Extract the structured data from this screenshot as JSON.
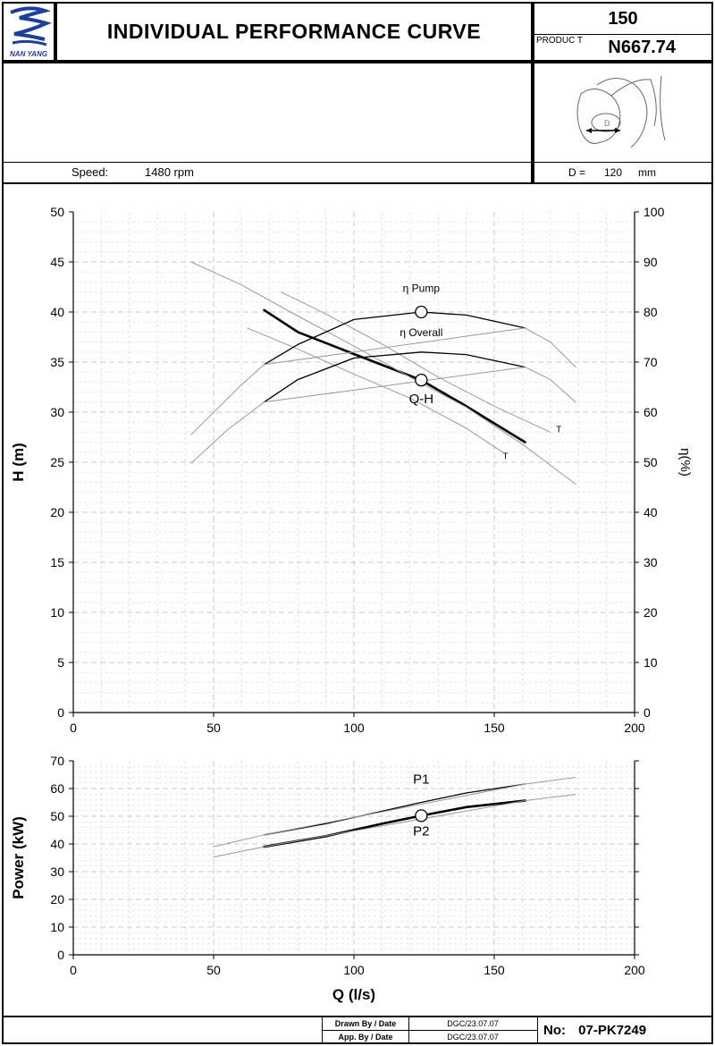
{
  "header": {
    "logo_text": "NAN YANG",
    "title": "INDIVIDUAL PERFORMANCE  CURVE",
    "size": "150",
    "product_label": "PRODUC  T",
    "product_value": "N667.74"
  },
  "specs": {
    "speed_label": "Speed:",
    "speed_value": "1480 rpm",
    "diameter_label": "D =",
    "diameter_value": "120",
    "diameter_unit": "mm",
    "impeller_mark": "D"
  },
  "footer": {
    "drawn_label": "Drawn By / Date",
    "drawn_value": "DGC/23.07.07",
    "approved_label": "App. By / Date",
    "approved_value": "DGC/23.07.07",
    "no_label": "No:",
    "no_value": "07-PK7249"
  },
  "chart_data": [
    {
      "type": "line",
      "xlabel": "",
      "ylabel": "H (m)",
      "y2label": "η(%)",
      "xlim": [
        0,
        200
      ],
      "ylim": [
        0,
        50
      ],
      "y2lim": [
        0,
        100
      ],
      "x_ticks": [
        "0",
        "50",
        "100",
        "150",
        "200"
      ],
      "y_ticks": [
        "0",
        "5",
        "10",
        "15",
        "20",
        "25",
        "30",
        "35",
        "40",
        "45",
        "50"
      ],
      "y2_ticks": [
        "0",
        "10",
        "20",
        "30",
        "40",
        "50",
        "60",
        "70",
        "80",
        "90",
        "100"
      ],
      "grid": true,
      "series": [
        {
          "name": "Q-H",
          "axis": "left",
          "style": "bold",
          "x": [
            68,
            80,
            100,
            124,
            140,
            161
          ],
          "y": [
            40.2,
            38.0,
            35.8,
            33.2,
            30.6,
            27.0
          ]
        },
        {
          "name": "",
          "axis": "left",
          "style": "thin",
          "x": [
            42,
            60,
            80,
            100,
            120,
            140,
            160,
            179
          ],
          "y": [
            45.0,
            42.7,
            39.6,
            36.6,
            33.5,
            30.5,
            26.8,
            22.8
          ]
        },
        {
          "name": "",
          "axis": "left",
          "style": "thin",
          "x": [
            74,
            90,
            110,
            130,
            150,
            170
          ],
          "y": [
            42.0,
            39.8,
            36.8,
            33.5,
            30.6,
            28.0
          ]
        },
        {
          "name": "",
          "axis": "left",
          "style": "thin",
          "x": [
            62,
            80,
            100,
            120,
            140,
            153
          ],
          "y": [
            38.4,
            36.3,
            33.8,
            31.4,
            28.4,
            26.0
          ]
        },
        {
          "name": "η Pump",
          "axis": "right",
          "style": "medium",
          "x": [
            68,
            80,
            100,
            124,
            140,
            161
          ],
          "y": [
            69.5,
            73.5,
            78.5,
            80.0,
            79.4,
            76.8
          ]
        },
        {
          "name": "",
          "axis": "right",
          "style": "thin",
          "x": [
            42,
            60,
            68,
            161,
            170,
            179
          ],
          "y": [
            55.5,
            65.5,
            69.5,
            76.8,
            74.0,
            69.0
          ]
        },
        {
          "name": "η Overall",
          "axis": "right",
          "style": "medium",
          "x": [
            68,
            80,
            100,
            124,
            140,
            161
          ],
          "y": [
            62.0,
            66.5,
            70.8,
            72.0,
            71.5,
            69.0
          ]
        },
        {
          "name": "",
          "axis": "right",
          "style": "thin",
          "x": [
            42,
            55,
            68,
            161,
            170,
            179
          ],
          "y": [
            49.8,
            56.5,
            62.0,
            69.0,
            66.5,
            62.0
          ]
        }
      ],
      "annotations": [
        {
          "text": "Q-H",
          "x": 124,
          "y": 30.9
        },
        {
          "text": "η Pump",
          "x": 124,
          "y": 42.0
        },
        {
          "text": "η Overall",
          "x": 124,
          "y": 37.6
        },
        {
          "text": "T",
          "x": 172,
          "y": 28.0
        },
        {
          "text": "T",
          "x": 153,
          "y": 25.3
        }
      ],
      "markers": [
        {
          "x": 124,
          "y": 33.2,
          "axis": "left"
        },
        {
          "x": 124,
          "y": 80.0,
          "axis": "right"
        }
      ]
    },
    {
      "type": "line",
      "xlabel": "Q (l/s)",
      "ylabel": "Power (kW)",
      "xlim": [
        0,
        200
      ],
      "ylim": [
        0,
        70
      ],
      "x_ticks": [
        "0",
        "50",
        "100",
        "150",
        "200"
      ],
      "y_ticks": [
        "0",
        "10",
        "20",
        "30",
        "40",
        "50",
        "60",
        "70"
      ],
      "grid": true,
      "series": [
        {
          "name": "P1",
          "style": "medium",
          "x": [
            68,
            90,
            110,
            124,
            140,
            161
          ],
          "y": [
            43.3,
            47.3,
            51.8,
            55.0,
            58.4,
            61.6
          ]
        },
        {
          "name": "",
          "style": "thin",
          "x": [
            50,
            68,
            161,
            170,
            179
          ],
          "y": [
            39.0,
            43.3,
            61.6,
            62.8,
            64.0
          ]
        },
        {
          "name": "P2",
          "style": "bold",
          "x": [
            68,
            90,
            110,
            124,
            140,
            161
          ],
          "y": [
            39.0,
            42.8,
            47.3,
            50.2,
            53.3,
            55.6
          ]
        },
        {
          "name": "",
          "style": "thin",
          "x": [
            50,
            68,
            161,
            170,
            179
          ],
          "y": [
            35.3,
            39.0,
            55.6,
            56.8,
            57.8
          ]
        }
      ],
      "annotations": [
        {
          "text": "P1",
          "x": 124,
          "y": 61.8
        },
        {
          "text": "P2",
          "x": 124,
          "y": 43.0
        }
      ],
      "markers": [
        {
          "x": 124,
          "y": 50.2
        }
      ]
    }
  ]
}
